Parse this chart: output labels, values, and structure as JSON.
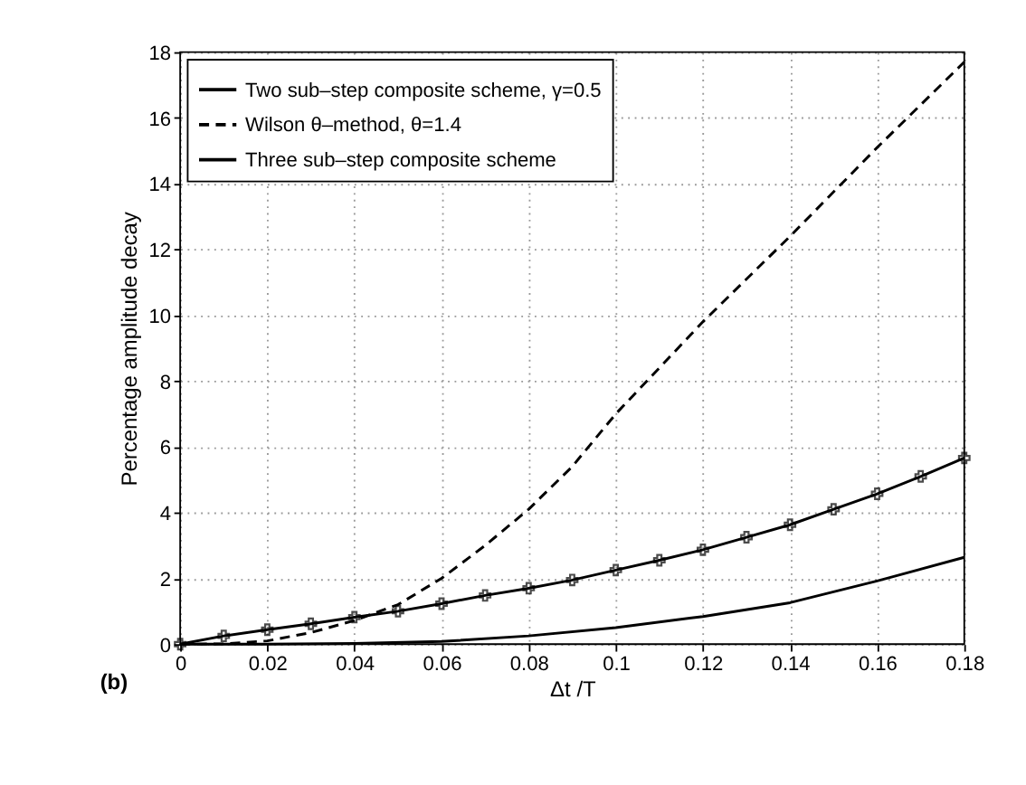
{
  "chart_data": {
    "type": "line",
    "xlabel": "Δt /T",
    "ylabel": "Percentage amplitude decay",
    "annotations": [
      "(b)"
    ],
    "xlim": [
      0,
      0.18
    ],
    "xticks": [
      {
        "value": 0,
        "label": "0"
      },
      0.02,
      0.04,
      0.06,
      0.08,
      {
        "value": 0.1,
        "label": "0.1"
      },
      0.12,
      0.14,
      0.16,
      0.18
    ],
    "ylim": [
      0,
      18
    ],
    "yticks": [
      0,
      2,
      4,
      6,
      8,
      10,
      12,
      14,
      16,
      18
    ],
    "grid": true,
    "legend": "top left",
    "series": [
      {
        "name": "Two sub–step composite scheme, γ=0.5",
        "color": "#000000",
        "line_style": "solid",
        "marker": "none",
        "x": [
          0,
          0.02,
          0.04,
          0.06,
          0.08,
          0.1,
          0.12,
          0.14,
          0.16,
          0.18
        ],
        "values": [
          0,
          0.0,
          0.02,
          0.08,
          0.25,
          0.5,
          0.84,
          1.26,
          1.92,
          2.64
        ]
      },
      {
        "name": "Wilson θ–method, θ=1.4",
        "color": "#000000",
        "line_style": "dashed",
        "marker": "none",
        "x": [
          0,
          0.01,
          0.02,
          0.03,
          0.04,
          0.05,
          0.06,
          0.07,
          0.08,
          0.09,
          0.1,
          0.12,
          0.14,
          0.16,
          0.18
        ],
        "values": [
          0,
          0.01,
          0.1,
          0.35,
          0.72,
          1.2,
          2.0,
          3.0,
          4.1,
          5.4,
          7.0,
          9.8,
          12.4,
          15.1,
          17.7
        ]
      },
      {
        "name": "Three sub–step composite scheme",
        "color": "#000000",
        "line_style": "solid",
        "marker": "cross",
        "x": [
          0,
          0.01,
          0.02,
          0.03,
          0.04,
          0.05,
          0.06,
          0.07,
          0.08,
          0.09,
          0.1,
          0.11,
          0.12,
          0.13,
          0.14,
          0.15,
          0.16,
          0.17,
          0.18
        ],
        "values": [
          0,
          0.25,
          0.44,
          0.62,
          0.82,
          1.0,
          1.23,
          1.48,
          1.7,
          1.95,
          2.25,
          2.55,
          2.87,
          3.25,
          3.63,
          4.1,
          4.57,
          5.1,
          5.66
        ]
      }
    ]
  }
}
